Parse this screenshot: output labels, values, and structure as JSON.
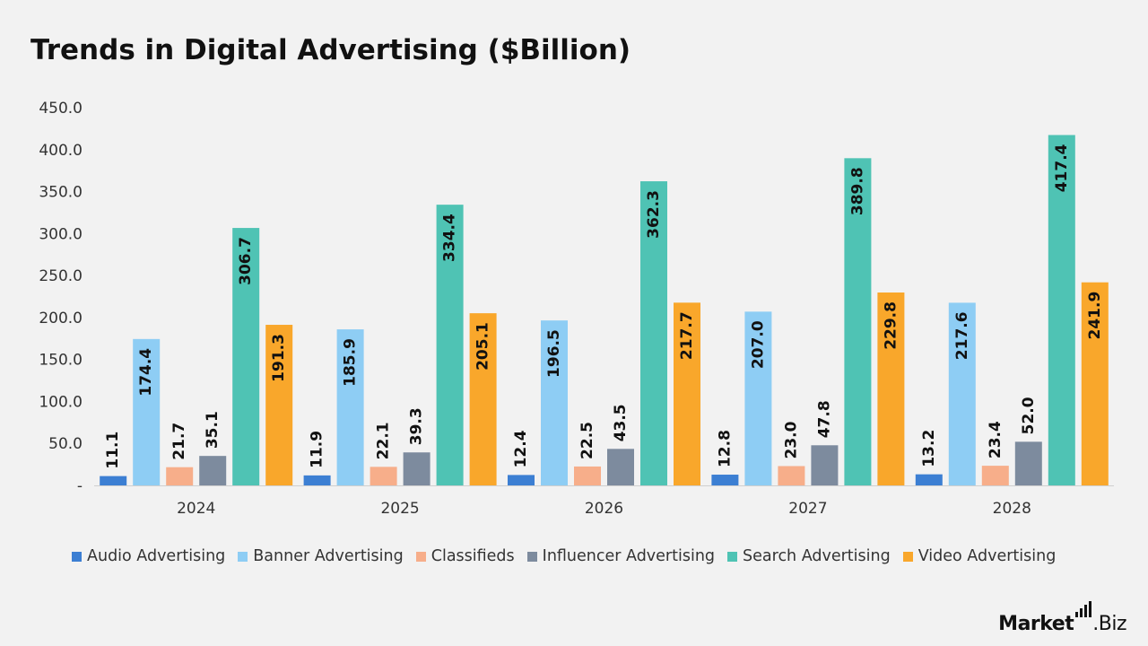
{
  "title": "Trends in Digital Advertising ($Billion)",
  "brand": {
    "name_bold": "Market",
    "name_rest": ".Biz"
  },
  "colors": {
    "Audio Advertising": "#3c7fd3",
    "Banner Advertising": "#8ecdf4",
    "Classifieds": "#f7ae8a",
    "Influencer Advertising": "#7d8b9e",
    "Search Advertising": "#4fc3b4",
    "Video Advertising": "#f9a72b"
  },
  "chart_data": {
    "type": "bar",
    "title": "Trends in Digital Advertising ($Billion)",
    "categories": [
      "2024",
      "2025",
      "2026",
      "2027",
      "2028"
    ],
    "series": [
      {
        "name": "Audio Advertising",
        "values": [
          11.1,
          11.9,
          12.4,
          12.8,
          13.2
        ]
      },
      {
        "name": "Banner Advertising",
        "values": [
          174.4,
          185.9,
          196.5,
          207.0,
          217.6
        ]
      },
      {
        "name": "Classifieds",
        "values": [
          21.7,
          22.1,
          22.5,
          23.0,
          23.4
        ]
      },
      {
        "name": "Influencer Advertising",
        "values": [
          35.1,
          39.3,
          43.5,
          47.8,
          52.0
        ]
      },
      {
        "name": "Search Advertising",
        "values": [
          306.7,
          334.4,
          362.3,
          389.8,
          417.4
        ]
      },
      {
        "name": "Video Advertising",
        "values": [
          191.3,
          205.1,
          217.7,
          229.8,
          241.9
        ]
      }
    ],
    "y_ticks": [
      "-",
      "50.0",
      "100.0",
      "150.0",
      "200.0",
      "250.0",
      "300.0",
      "350.0",
      "400.0",
      "450.0"
    ],
    "ylim": [
      0,
      450
    ],
    "xlabel": "",
    "ylabel": "",
    "grid": false,
    "legend_position": "bottom",
    "data_labels": true
  }
}
